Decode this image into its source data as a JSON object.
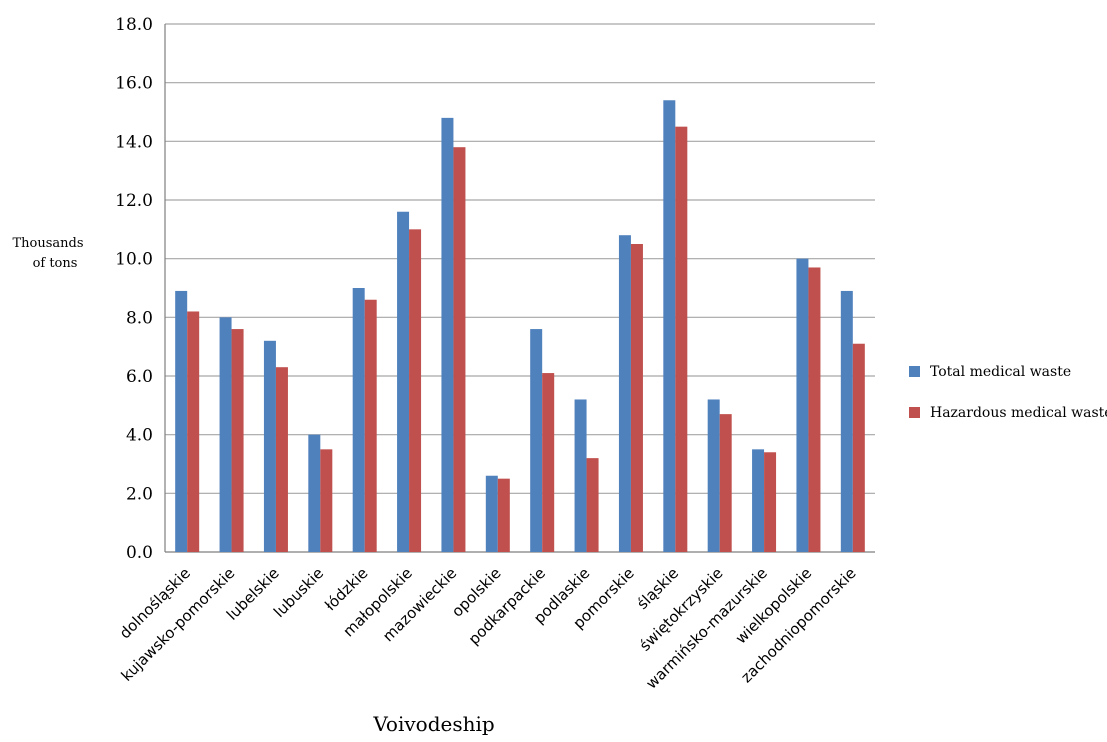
{
  "chart_data": {
    "type": "bar",
    "title": "",
    "xlabel": "Voivodeship",
    "ylabel": [
      "Thousands",
      "of tons"
    ],
    "ylim": [
      0,
      18
    ],
    "yticks": [
      "0.0",
      "2.0",
      "4.0",
      "6.0",
      "8.0",
      "10.0",
      "12.0",
      "14.0",
      "16.0",
      "18.0"
    ],
    "grid": true,
    "legend_position": "right",
    "categories": [
      "dolnośląskie",
      "kujawsko-pomorskie",
      "lubelskie",
      "lubuskie",
      "łódzkie",
      "małopolskie",
      "mazowieckie",
      "opolskie",
      "podkarpackie",
      "podlaskie",
      "pomorskie",
      "śląskie",
      "świętokrzyskie",
      "warmińsko-mazurskie",
      "wielkopolskie",
      "zachodniopomorskie"
    ],
    "series": [
      {
        "name": "Total medical waste",
        "color": "#4F81BD",
        "values": [
          8.9,
          8.0,
          7.2,
          4.0,
          9.0,
          11.6,
          14.8,
          2.6,
          7.6,
          5.2,
          10.8,
          15.4,
          5.2,
          3.5,
          10.0,
          8.9
        ]
      },
      {
        "name": "Hazardous medical waste",
        "color": "#C0504D",
        "values": [
          8.2,
          7.6,
          6.3,
          3.5,
          8.6,
          11.0,
          13.8,
          2.5,
          6.1,
          3.2,
          10.5,
          14.5,
          4.7,
          3.4,
          9.7,
          7.1
        ]
      }
    ]
  }
}
